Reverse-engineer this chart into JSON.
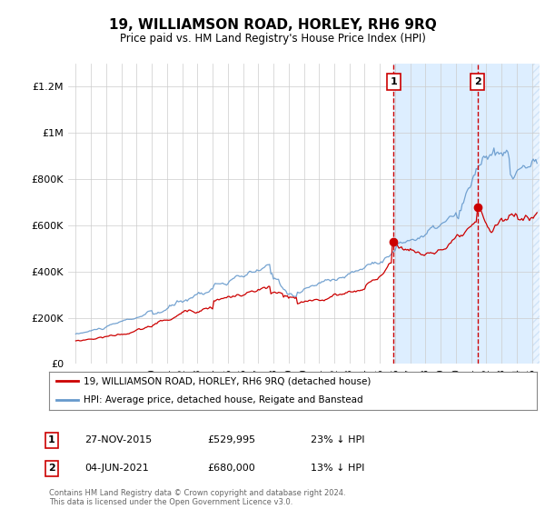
{
  "title": "19, WILLIAMSON ROAD, HORLEY, RH6 9RQ",
  "subtitle": "Price paid vs. HM Land Registry's House Price Index (HPI)",
  "footer": "Contains HM Land Registry data © Crown copyright and database right 2024.\nThis data is licensed under the Open Government Licence v3.0.",
  "legend_line1": "19, WILLIAMSON ROAD, HORLEY, RH6 9RQ (detached house)",
  "legend_line2": "HPI: Average price, detached house, Reigate and Banstead",
  "annotation1_label": "1",
  "annotation1_date": "27-NOV-2015",
  "annotation1_price": "£529,995",
  "annotation1_hpi": "23% ↓ HPI",
  "annotation1_year": 2015.9,
  "annotation1_value": 529995,
  "annotation2_label": "2",
  "annotation2_date": "04-JUN-2021",
  "annotation2_price": "£680,000",
  "annotation2_hpi": "13% ↓ HPI",
  "annotation2_year": 2021.42,
  "annotation2_value": 680000,
  "red_color": "#cc0000",
  "blue_color": "#6699cc",
  "background_color": "#ffffff",
  "plot_bg_color": "#ffffff",
  "shade_color": "#ddeeff",
  "grid_color": "#cccccc",
  "ylim": [
    0,
    1300000
  ],
  "yticks": [
    0,
    200000,
    400000,
    600000,
    800000,
    1000000,
    1200000
  ],
  "ytick_labels": [
    "£0",
    "£200K",
    "£400K",
    "£600K",
    "£800K",
    "£1M",
    "£1.2M"
  ],
  "xstart": 1995.0,
  "xend": 2025.5
}
